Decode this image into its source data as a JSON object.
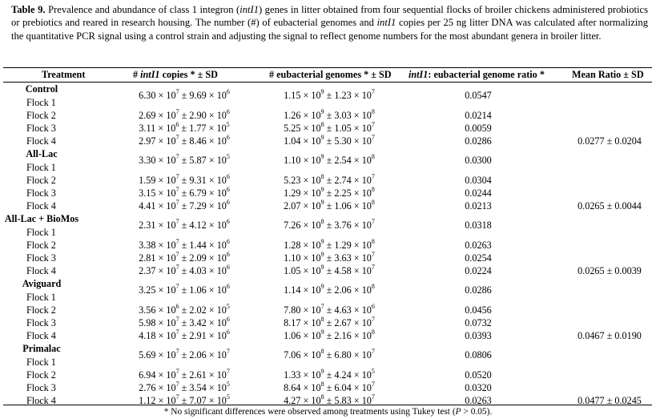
{
  "caption": {
    "label": "Table 9.",
    "part1": " Prevalence and abundance of class 1 integron (",
    "gene1": "intI1",
    "part2": ") genes in litter obtained from four sequential flocks of broiler chickens administered probiotics or prebiotics and reared in research housing. The number (#) of eubacterial genomes and ",
    "gene2": "intI1",
    "part3": " copies per 25 ng litter DNA was calculated after normalizing the quantitative PCR signal using a control strain and adjusting the signal to reflect genome numbers for the most abundant genera in broiler litter."
  },
  "headers": {
    "treatment": "Treatment",
    "copies_pre": "# ",
    "copies_gene": "intI1",
    "copies_post": " copies * ± SD",
    "genomes": "# eubacterial genomes * ± SD",
    "ratio_gene": "intI1",
    "ratio_post": ": eubacterial genome ratio *",
    "mean": "Mean Ratio ± SD"
  },
  "groups": [
    {
      "name": "Control",
      "mean": "0.0277 ± 0.0204",
      "flocks": [
        {
          "label": "Flock 1",
          "cm": "6.30",
          "ce": "7",
          "sm": "9.69",
          "se": "6",
          "gm": "1.15",
          "ge": "9",
          "gsm": "1.23",
          "gse": "7",
          "ratio": "0.0547"
        },
        {
          "label": "Flock 2",
          "cm": "2.69",
          "ce": "7",
          "sm": "2.90",
          "se": "6",
          "gm": "1.26",
          "ge": "9",
          "gsm": "3.03",
          "gse": "8",
          "ratio": "0.0214"
        },
        {
          "label": "Flock 3",
          "cm": "3.11",
          "ce": "6",
          "sm": "1.77",
          "se": "5",
          "gm": "5.25",
          "ge": "8",
          "gsm": "1.05",
          "gse": "7",
          "ratio": "0.0059"
        },
        {
          "label": "Flock 4",
          "cm": "2.97",
          "ce": "7",
          "sm": "8.46",
          "se": "6",
          "gm": "1.04",
          "ge": "9",
          "gsm": "5.30",
          "gse": "7",
          "ratio": "0.0286"
        }
      ]
    },
    {
      "name": "All-Lac",
      "mean": "0.0265 ± 0.0044",
      "flocks": [
        {
          "label": "Flock 1",
          "cm": "3.30",
          "ce": "7",
          "sm": "5.87",
          "se": "5",
          "gm": "1.10",
          "ge": "9",
          "gsm": "2.54",
          "gse": "8",
          "ratio": "0.0300"
        },
        {
          "label": "Flock 2",
          "cm": "1.59",
          "ce": "7",
          "sm": "9.31",
          "se": "6",
          "gm": "5.23",
          "ge": "8",
          "gsm": "2.74",
          "gse": "7",
          "ratio": "0.0304"
        },
        {
          "label": "Flock 3",
          "cm": "3.15",
          "ce": "7",
          "sm": "6.79",
          "se": "6",
          "gm": "1.29",
          "ge": "9",
          "gsm": "2.25",
          "gse": "8",
          "ratio": "0.0244"
        },
        {
          "label": "Flock 4",
          "cm": "4.41",
          "ce": "7",
          "sm": "7.29",
          "se": "6",
          "gm": "2.07",
          "ge": "9",
          "gsm": "1.06",
          "gse": "8",
          "ratio": "0.0213"
        }
      ]
    },
    {
      "name": "All-Lac + BioMos",
      "mean": "0.0265 ± 0.0039",
      "flocks": [
        {
          "label": "Flock 1",
          "cm": "2.31",
          "ce": "7",
          "sm": "4.12",
          "se": "6",
          "gm": "7.26",
          "ge": "8",
          "gsm": "3.76",
          "gse": "7",
          "ratio": "0.0318"
        },
        {
          "label": "Flock 2",
          "cm": "3.38",
          "ce": "7",
          "sm": "1.44",
          "se": "6",
          "gm": "1.28",
          "ge": "9",
          "gsm": "1.29",
          "gse": "8",
          "ratio": "0.0263"
        },
        {
          "label": "Flock 3",
          "cm": "2.81",
          "ce": "7",
          "sm": "2.09",
          "se": "6",
          "gm": "1.10",
          "ge": "9",
          "gsm": "3.63",
          "gse": "7",
          "ratio": "0.0254"
        },
        {
          "label": "Flock 4",
          "cm": "2.37",
          "ce": "7",
          "sm": "4.03",
          "se": "6",
          "gm": "1.05",
          "ge": "9",
          "gsm": "4.58",
          "gse": "7",
          "ratio": "0.0224"
        }
      ]
    },
    {
      "name": "Aviguard",
      "mean": "0.0467 ± 0.0190",
      "flocks": [
        {
          "label": "Flock 1",
          "cm": "3.25",
          "ce": "7",
          "sm": "1.06",
          "se": "6",
          "gm": "1.14",
          "ge": "9",
          "gsm": "2.06",
          "gse": "8",
          "ratio": "0.0286"
        },
        {
          "label": "Flock 2",
          "cm": "3.56",
          "ce": "6",
          "sm": "2.02",
          "se": "5",
          "gm": "7.80",
          "ge": "7",
          "gsm": "4.63",
          "gse": "6",
          "ratio": "0.0456"
        },
        {
          "label": "Flock 3",
          "cm": "5.98",
          "ce": "7",
          "sm": "3.42",
          "se": "6",
          "gm": "8.17",
          "ge": "8",
          "gsm": "2.67",
          "gse": "7",
          "ratio": "0.0732"
        },
        {
          "label": "Flock 4",
          "cm": "4.18",
          "ce": "7",
          "sm": "2.91",
          "se": "6",
          "gm": "1.06",
          "ge": "9",
          "gsm": "2.16",
          "gse": "8",
          "ratio": "0.0393"
        }
      ]
    },
    {
      "name": "Primalac",
      "mean": "0.0477 ± 0.0245",
      "flocks": [
        {
          "label": "Flock 1",
          "cm": "5.69",
          "ce": "7",
          "sm": "2.06",
          "se": "7",
          "gm": "7.06",
          "ge": "8",
          "gsm": "6.80",
          "gse": "7",
          "ratio": "0.0806"
        },
        {
          "label": "Flock 2",
          "cm": "6.94",
          "ce": "7",
          "sm": "2.61",
          "se": "7",
          "gm": "1.33",
          "ge": "9",
          "gsm": "4.24",
          "gse": "5",
          "ratio": "0.0520"
        },
        {
          "label": "Flock 3",
          "cm": "2.76",
          "ce": "7",
          "sm": "3.54",
          "se": "5",
          "gm": "8.64",
          "ge": "8",
          "gsm": "6.04",
          "gse": "7",
          "ratio": "0.0320"
        },
        {
          "label": "Flock 4",
          "cm": "1.12",
          "ce": "7",
          "sm": "7.07",
          "se": "5",
          "gm": "4.27",
          "ge": "8",
          "gsm": "5.83",
          "gse": "7",
          "ratio": "0.0263"
        }
      ]
    }
  ],
  "footnote": {
    "part1": "* No significant differences were observed among treatments using Tukey test (",
    "p": "P",
    "part2": " > 0.05)."
  }
}
